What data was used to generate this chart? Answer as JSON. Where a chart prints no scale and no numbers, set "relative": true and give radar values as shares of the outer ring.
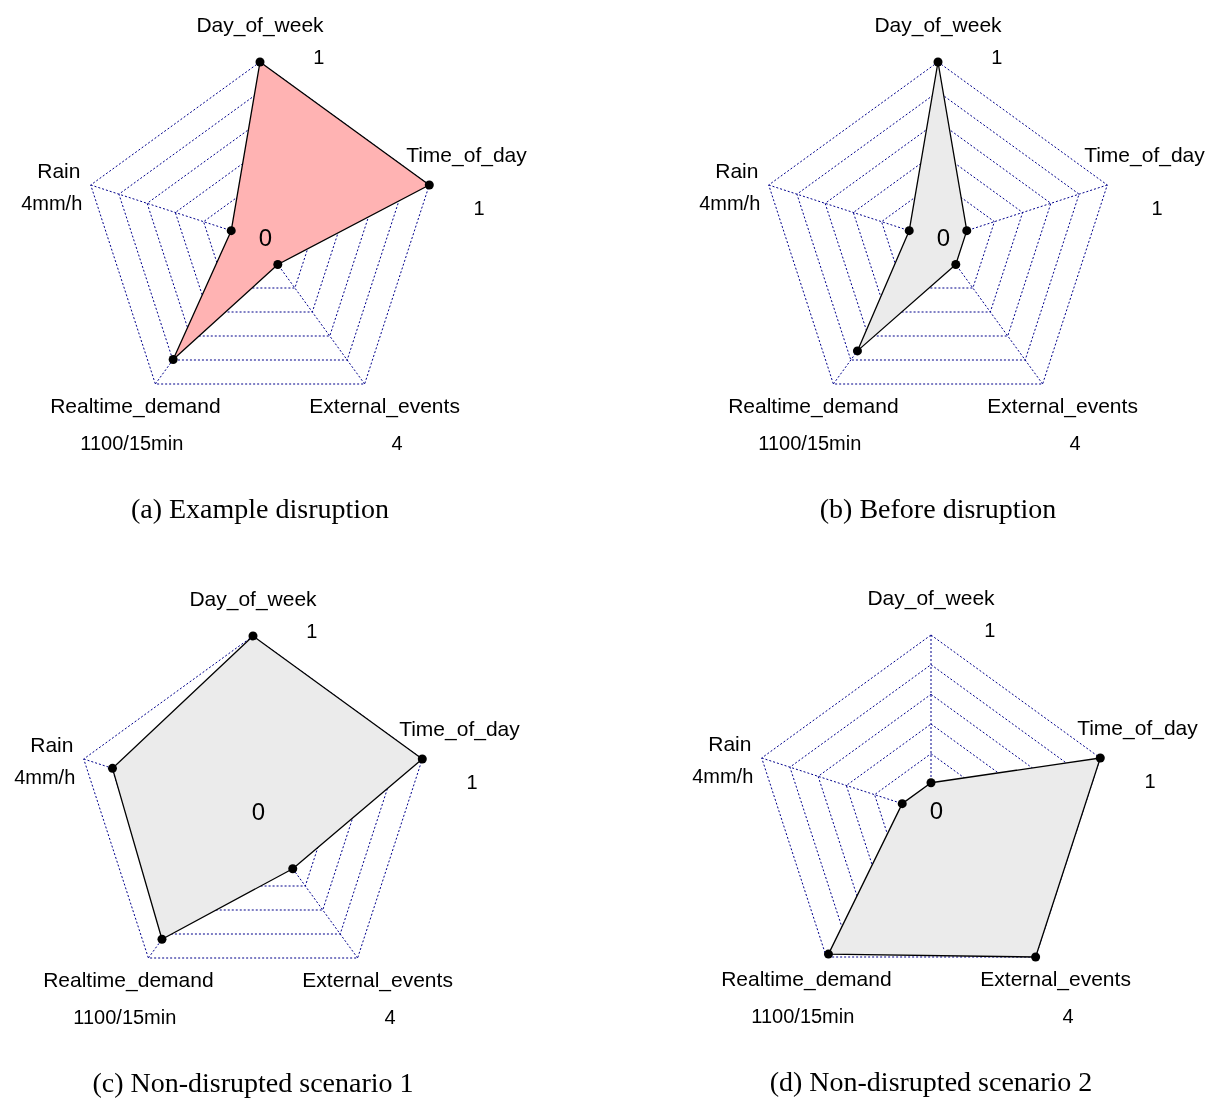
{
  "chart_data": [
    {
      "type": "radar",
      "title": "(a)  Example disruption",
      "relative": true,
      "grid": true,
      "marker": "circle",
      "categories": [
        "Day_of_week",
        "Time_of_day",
        "External_events",
        "Realtime_demand",
        "Rain"
      ],
      "annotations": [
        "1",
        "1",
        "4",
        "1100/15min",
        "4mm/h",
        "0"
      ],
      "series": [
        {
          "color": "#ffb3b3",
          "values": [
            1.0,
            1.0,
            0.17,
            0.83,
            0.17
          ]
        }
      ]
    },
    {
      "type": "radar",
      "title": "(b) Before disruption",
      "relative": true,
      "grid": true,
      "marker": "circle",
      "categories": [
        "Day_of_week",
        "Time_of_day",
        "External_events",
        "Realtime_demand",
        "Rain"
      ],
      "annotations": [
        "1",
        "1",
        "4",
        "1100/15min",
        "4mm/h",
        "0"
      ],
      "series": [
        {
          "color": "#ebebeb",
          "values": [
            1.0,
            0.17,
            0.17,
            0.77,
            0.17
          ]
        }
      ]
    },
    {
      "type": "radar",
      "title": "(c)  Non-disrupted scenario 1",
      "relative": true,
      "grid": true,
      "marker": "circle",
      "categories": [
        "Day_of_week",
        "Time_of_day",
        "External_events",
        "Realtime_demand",
        "Rain"
      ],
      "annotations": [
        "1",
        "1",
        "4",
        "1100/15min",
        "4mm/h",
        "0"
      ],
      "series": [
        {
          "color": "#ebebeb",
          "values": [
            1.0,
            1.0,
            0.38,
            0.87,
            0.83
          ]
        }
      ]
    },
    {
      "type": "radar",
      "title": "(d) Non-disrupted scenario 2",
      "relative": true,
      "grid": true,
      "marker": "circle",
      "categories": [
        "Day_of_week",
        "Time_of_day",
        "External_events",
        "Realtime_demand",
        "Rain"
      ],
      "annotations": [
        "1",
        "1",
        "4",
        "1100/15min",
        "4mm/h",
        "0"
      ],
      "series": [
        {
          "color": "#ebebeb",
          "values": [
            0.17,
            1.0,
            1.0,
            0.98,
            0.17
          ]
        }
      ]
    }
  ]
}
